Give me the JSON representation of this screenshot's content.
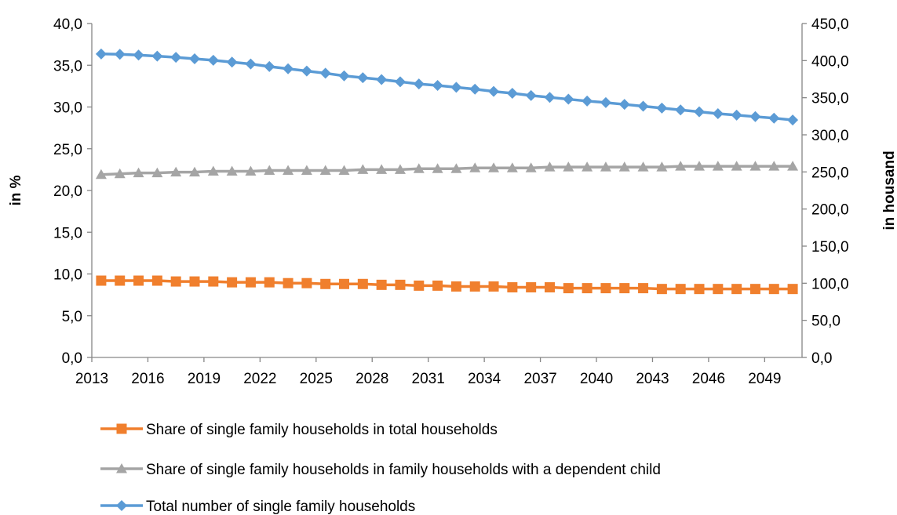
{
  "chart_data": {
    "type": "line",
    "title": "",
    "ylabel_left": "in %",
    "ylabel_right": "in housand",
    "x": [
      2013,
      2014,
      2015,
      2016,
      2017,
      2018,
      2019,
      2020,
      2021,
      2022,
      2023,
      2024,
      2025,
      2026,
      2027,
      2028,
      2029,
      2030,
      2031,
      2032,
      2033,
      2034,
      2035,
      2036,
      2037,
      2038,
      2039,
      2040,
      2041,
      2042,
      2043,
      2044,
      2045,
      2046,
      2047,
      2048,
      2049,
      2050
    ],
    "x_tick_labels": [
      "2013",
      "2016",
      "2019",
      "2022",
      "2025",
      "2028",
      "2031",
      "2034",
      "2037",
      "2040",
      "2043",
      "2046",
      "2049"
    ],
    "y_left_ticks": [
      "0,0",
      "5,0",
      "10,0",
      "15,0",
      "20,0",
      "25,0",
      "30,0",
      "35,0",
      "40,0"
    ],
    "y_right_ticks": [
      "0,0",
      "50,0",
      "100,0",
      "150,0",
      "200,0",
      "250,0",
      "300,0",
      "350,0",
      "400,0",
      "450,0"
    ],
    "ylim_left": [
      0,
      40
    ],
    "ylim_right": [
      0,
      450
    ],
    "grid": false,
    "legend_position": "bottom",
    "series": [
      {
        "name": "Share of single family households in total households",
        "axis": "left",
        "color": "#f07f2d",
        "marker": "square",
        "values": [
          9.2,
          9.2,
          9.2,
          9.2,
          9.1,
          9.1,
          9.1,
          9.0,
          9.0,
          9.0,
          8.9,
          8.9,
          8.8,
          8.8,
          8.8,
          8.7,
          8.7,
          8.6,
          8.6,
          8.5,
          8.5,
          8.5,
          8.4,
          8.4,
          8.4,
          8.3,
          8.3,
          8.3,
          8.3,
          8.3,
          8.2,
          8.2,
          8.2,
          8.2,
          8.2,
          8.2,
          8.2,
          8.2
        ]
      },
      {
        "name": "Share of single family households in family households with a dependent child",
        "axis": "left",
        "color": "#a5a5a5",
        "marker": "triangle",
        "values": [
          21.9,
          22.0,
          22.1,
          22.1,
          22.2,
          22.2,
          22.3,
          22.3,
          22.3,
          22.4,
          22.4,
          22.4,
          22.4,
          22.4,
          22.5,
          22.5,
          22.5,
          22.6,
          22.6,
          22.6,
          22.7,
          22.7,
          22.7,
          22.7,
          22.8,
          22.8,
          22.8,
          22.8,
          22.8,
          22.8,
          22.8,
          22.9,
          22.9,
          22.9,
          22.9,
          22.9,
          22.9,
          22.9
        ]
      },
      {
        "name": "Total number of single family households",
        "axis": "right",
        "color": "#5b9bd5",
        "marker": "diamond",
        "values": [
          409,
          408.5,
          407.5,
          406,
          404.5,
          402.5,
          400.5,
          398,
          395.5,
          392,
          389,
          386,
          383,
          379.5,
          377,
          374.5,
          371.5,
          368.5,
          366.5,
          364,
          361.5,
          358.5,
          356,
          353,
          350.5,
          348,
          345.5,
          343.5,
          341,
          338.5,
          336,
          333.5,
          331,
          328.5,
          326.5,
          324.5,
          322.5,
          320
        ]
      }
    ]
  }
}
